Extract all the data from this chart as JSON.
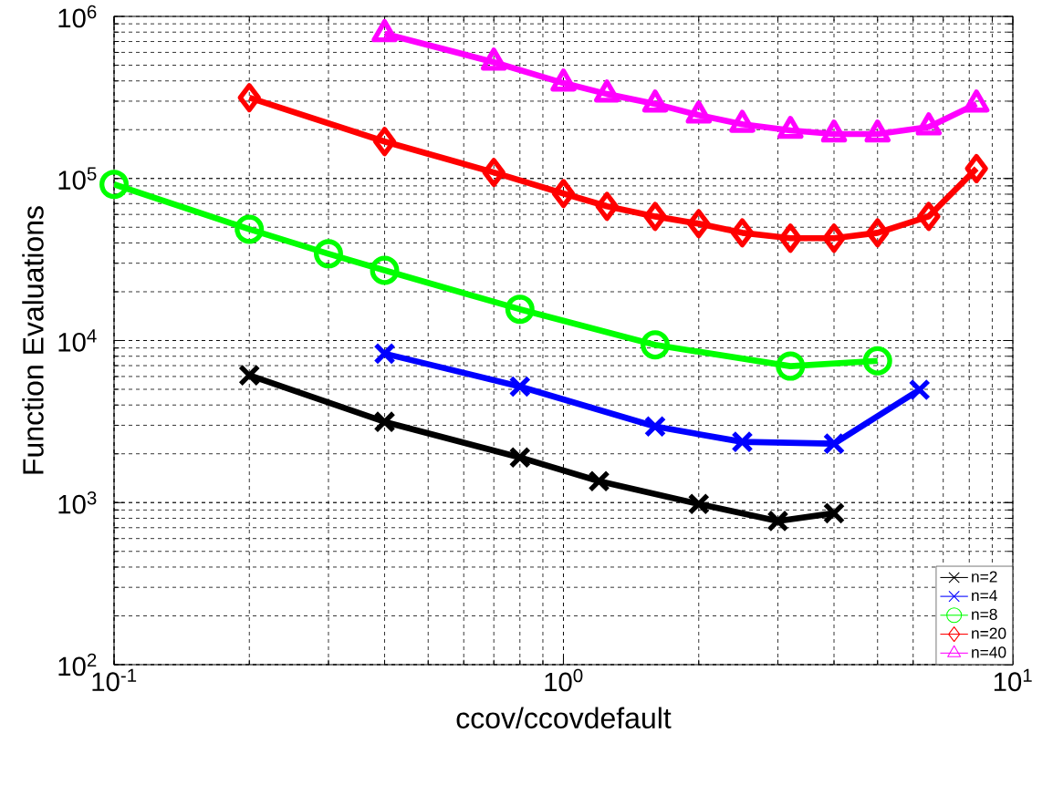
{
  "chart_data": {
    "type": "line",
    "xlabel": "ccov/ccovdefault",
    "ylabel": "Function Evaluations",
    "log": "xy",
    "xlim": [
      0.1,
      10
    ],
    "ylim": [
      100,
      1000000
    ],
    "xticks": [
      {
        "value": 0.1,
        "label": "10$^{-1}$"
      },
      {
        "value": 1,
        "label": "10$^{0}$"
      },
      {
        "value": 10,
        "label": "10$^{1}$"
      }
    ],
    "yticks": [
      {
        "value": 100,
        "label": "10$^{2}$"
      },
      {
        "value": 1000,
        "label": "10$^{3}$"
      },
      {
        "value": 10000,
        "label": "10$^{4}$"
      },
      {
        "value": 100000,
        "label": "10$^{5}$"
      },
      {
        "value": 1000000,
        "label": "10$^{6}$"
      }
    ],
    "grid": true,
    "legend": "bottom right",
    "series": [
      {
        "name": "n=2",
        "color": "#000000",
        "marker": "cross",
        "x": [
          0.2,
          0.4,
          0.8,
          1.2,
          2,
          3,
          4
        ],
        "values": [
          6100,
          3150,
          1900,
          1355,
          980,
          770,
          860
        ]
      },
      {
        "name": "n=4",
        "color": "#0000ff",
        "marker": "cross",
        "x": [
          0.4,
          0.8,
          1.6,
          2.5,
          4,
          6.2
        ],
        "values": [
          8300,
          5200,
          2950,
          2370,
          2310,
          4970
        ]
      },
      {
        "name": "n=8",
        "color": "#00ff00",
        "marker": "circle",
        "x": [
          0.1,
          0.2,
          0.3,
          0.4,
          0.8,
          1.6,
          3.2,
          5
        ],
        "values": [
          92000,
          48600,
          34300,
          27100,
          15600,
          9400,
          6950,
          7500
        ]
      },
      {
        "name": "n=20",
        "color": "#ff0000",
        "marker": "diamond",
        "x": [
          0.2,
          0.4,
          0.7,
          1,
          1.25,
          1.6,
          2,
          2.5,
          3.2,
          4,
          5,
          6.5,
          8.3
        ],
        "values": [
          315000,
          169000,
          109000,
          80700,
          67300,
          58300,
          52600,
          46200,
          42800,
          42800,
          46200,
          58300,
          115000
        ]
      },
      {
        "name": "n=40",
        "color": "#ff00ff",
        "marker": "triangle",
        "x": [
          0.4,
          0.7,
          1,
          1.25,
          1.6,
          2,
          2.5,
          3.2,
          4,
          5,
          6.5,
          8.3
        ],
        "values": [
          782000,
          522000,
          388000,
          332000,
          288000,
          246000,
          216000,
          198000,
          188000,
          188000,
          208000,
          288000
        ]
      }
    ]
  }
}
